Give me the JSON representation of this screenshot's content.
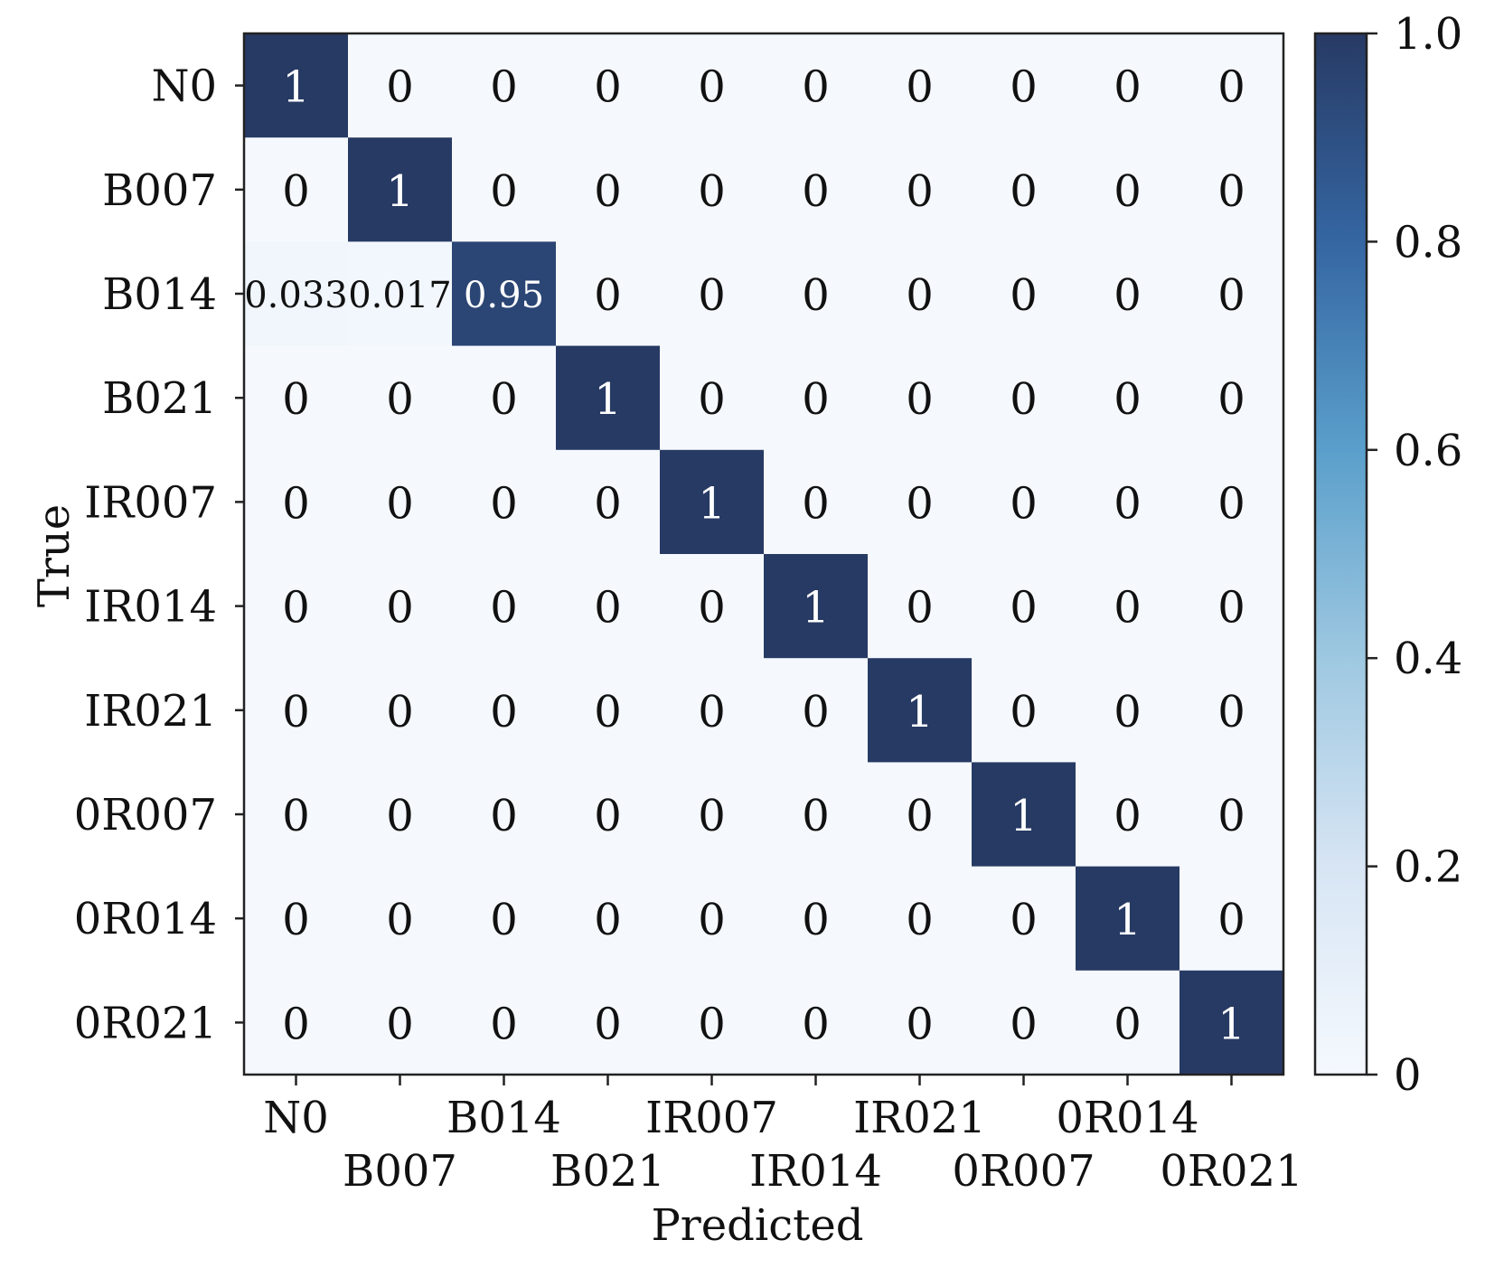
{
  "chart_data": {
    "type": "heatmap",
    "rows": [
      "N0",
      "B007",
      "B014",
      "B021",
      "IR007",
      "IR014",
      "IR021",
      "0R007",
      "0R014",
      "0R021"
    ],
    "columns": [
      "N0",
      "B007",
      "B014",
      "B021",
      "IR007",
      "IR014",
      "IR021",
      "0R007",
      "0R014",
      "0R021"
    ],
    "values": [
      [
        1,
        0,
        0,
        0,
        0,
        0,
        0,
        0,
        0,
        0
      ],
      [
        0,
        1,
        0,
        0,
        0,
        0,
        0,
        0,
        0,
        0
      ],
      [
        0.033,
        0.017,
        0.95,
        0,
        0,
        0,
        0,
        0,
        0,
        0
      ],
      [
        0,
        0,
        0,
        1,
        0,
        0,
        0,
        0,
        0,
        0
      ],
      [
        0,
        0,
        0,
        0,
        1,
        0,
        0,
        0,
        0,
        0
      ],
      [
        0,
        0,
        0,
        0,
        0,
        1,
        0,
        0,
        0,
        0
      ],
      [
        0,
        0,
        0,
        0,
        0,
        0,
        1,
        0,
        0,
        0
      ],
      [
        0,
        0,
        0,
        0,
        0,
        0,
        0,
        1,
        0,
        0
      ],
      [
        0,
        0,
        0,
        0,
        0,
        0,
        0,
        0,
        1,
        0
      ],
      [
        0,
        0,
        0,
        0,
        0,
        0,
        0,
        0,
        0,
        1
      ]
    ],
    "cell_labels": [
      [
        "1",
        "0",
        "0",
        "0",
        "0",
        "0",
        "0",
        "0",
        "0",
        "0"
      ],
      [
        "0",
        "1",
        "0",
        "0",
        "0",
        "0",
        "0",
        "0",
        "0",
        "0"
      ],
      [
        "0.033",
        "0.017",
        "0.95",
        "0",
        "0",
        "0",
        "0",
        "0",
        "0",
        "0"
      ],
      [
        "0",
        "0",
        "0",
        "1",
        "0",
        "0",
        "0",
        "0",
        "0",
        "0"
      ],
      [
        "0",
        "0",
        "0",
        "0",
        "1",
        "0",
        "0",
        "0",
        "0",
        "0"
      ],
      [
        "0",
        "0",
        "0",
        "0",
        "0",
        "1",
        "0",
        "0",
        "0",
        "0"
      ],
      [
        "0",
        "0",
        "0",
        "0",
        "0",
        "0",
        "1",
        "0",
        "0",
        "0"
      ],
      [
        "0",
        "0",
        "0",
        "0",
        "0",
        "0",
        "0",
        "1",
        "0",
        "0"
      ],
      [
        "0",
        "0",
        "0",
        "0",
        "0",
        "0",
        "0",
        "0",
        "1",
        "0"
      ],
      [
        "0",
        "0",
        "0",
        "0",
        "0",
        "0",
        "0",
        "0",
        "0",
        "1"
      ]
    ],
    "xlabel": "Predicted",
    "ylabel": "True",
    "colorbar": {
      "range": [
        0,
        1.0
      ],
      "ticks": [
        0,
        0.2,
        0.4,
        0.6,
        0.8,
        1.0
      ],
      "tick_labels": [
        "0",
        "0.2",
        "0.4",
        "0.6",
        "0.8",
        "1.0"
      ],
      "colormap": "Blues"
    },
    "colors": {
      "low": "#f4f8fd",
      "mid_low": "#c6dbef",
      "mid": "#4e92c2",
      "mid_high": "#2d5b93",
      "high": "#273a64",
      "text_on_dark": "#ffffff",
      "text_on_light": "#111111"
    }
  }
}
